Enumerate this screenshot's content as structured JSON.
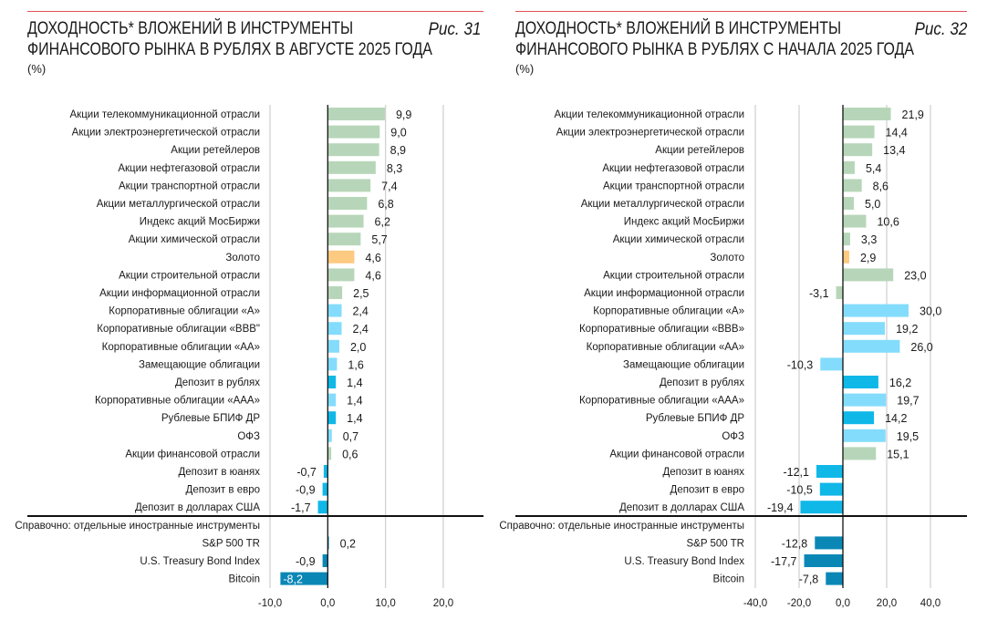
{
  "colors": {
    "g": "#b7d6b9",
    "o": "#fcca80",
    "lb": "#84dcfc",
    "mb": "#10b8e8",
    "db": "#0b87b6"
  },
  "chart_data": [
    {
      "type": "bar",
      "orientation": "horizontal",
      "figure_label": "Рис. 31",
      "title_line1": "ДОХОДНОСТЬ* ВЛОЖЕНИЙ В ИНСТРУМЕНТЫ",
      "title_line2": "ФИНАНСОВОГО РЫНКА В РУБЛЯХ В АВГУСТЕ 2025 ГОДА",
      "unit": "(%)",
      "xlim": [
        -10,
        20
      ],
      "ticks": [
        "-10,0",
        "0,0",
        "10,0",
        "20,0"
      ],
      "tick_values": [
        -10,
        0,
        10,
        20
      ],
      "grid": true,
      "note": "Справочно: отдельные иностранные инструменты",
      "categories": [
        {
          "label": "Акции телекоммуникационной отрасли",
          "value": 9.9,
          "text": "9,9",
          "color": "g"
        },
        {
          "label": "Акции электроэнергетической отрасли",
          "value": 9.0,
          "text": "9,0",
          "color": "g"
        },
        {
          "label": "Акции ретейлеров",
          "value": 8.9,
          "text": "8,9",
          "color": "g"
        },
        {
          "label": "Акции нефтегазовой отрасли",
          "value": 8.3,
          "text": "8,3",
          "color": "g"
        },
        {
          "label": "Акции транспортной отрасли",
          "value": 7.4,
          "text": "7,4",
          "color": "g"
        },
        {
          "label": "Акции металлургической отрасли",
          "value": 6.8,
          "text": "6,8",
          "color": "g"
        },
        {
          "label": "Индекс акций МосБиржи",
          "value": 6.2,
          "text": "6,2",
          "color": "g"
        },
        {
          "label": "Акции химической отрасли",
          "value": 5.7,
          "text": "5,7",
          "color": "g"
        },
        {
          "label": "Золото",
          "value": 4.6,
          "text": "4,6",
          "color": "o"
        },
        {
          "label": "Акции строительной отрасли",
          "value": 4.6,
          "text": "4,6",
          "color": "g"
        },
        {
          "label": "Акции информационной отрасли",
          "value": 2.5,
          "text": "2,5",
          "color": "g"
        },
        {
          "label": "Корпоративные облигации «А»",
          "value": 2.4,
          "text": "2,4",
          "color": "lb"
        },
        {
          "label": "Корпоративные облигации «ВВВ\"",
          "value": 2.4,
          "text": "2,4",
          "color": "lb"
        },
        {
          "label": "Корпоративные облигации «АА»",
          "value": 2.0,
          "text": "2,0",
          "color": "lb"
        },
        {
          "label": "Замещающие облигации",
          "value": 1.6,
          "text": "1,6",
          "color": "lb"
        },
        {
          "label": "Депозит в рублях",
          "value": 1.4,
          "text": "1,4",
          "color": "mb"
        },
        {
          "label": "Корпоративные облигации «ААА»",
          "value": 1.4,
          "text": "1,4",
          "color": "lb"
        },
        {
          "label": "Рублевые БПИФ ДР",
          "value": 1.4,
          "text": "1,4",
          "color": "mb"
        },
        {
          "label": "ОФЗ",
          "value": 0.7,
          "text": "0,7",
          "color": "lb"
        },
        {
          "label": "Акции финансовой отрасли",
          "value": 0.6,
          "text": "0,6",
          "color": "g"
        },
        {
          "label": "Депозит в юанях",
          "value": -0.7,
          "text": "-0,7",
          "color": "mb"
        },
        {
          "label": "Депозит в евро",
          "value": -0.9,
          "text": "-0,9",
          "color": "mb"
        },
        {
          "label": "Депозит в долларах США",
          "value": -1.7,
          "text": "-1,7",
          "color": "mb"
        }
      ],
      "foreign": [
        {
          "label": "S&P 500 TR",
          "value": 0.2,
          "text": "0,2",
          "color": "db"
        },
        {
          "label": "U.S. Treasury Bond Index",
          "value": -0.9,
          "text": "-0,9",
          "color": "db"
        },
        {
          "label": "Bitcoin",
          "value": -8.2,
          "text": "-8,2",
          "color": "db"
        }
      ]
    },
    {
      "type": "bar",
      "orientation": "horizontal",
      "figure_label": "Рис. 32",
      "title_line1": "ДОХОДНОСТЬ* ВЛОЖЕНИЙ В ИНСТРУМЕНТЫ",
      "title_line2": "ФИНАНСОВОГО РЫНКА В РУБЛЯХ С НАЧАЛА 2025 ГОДА",
      "unit": "(%)",
      "xlim": [
        -40,
        40
      ],
      "ticks": [
        "-40,0",
        "-20,0",
        "0,0",
        "20,0",
        "40,0"
      ],
      "tick_values": [
        -40,
        -20,
        0,
        20,
        40
      ],
      "grid": true,
      "note": "Справочно: отдельные иностранные инструменты",
      "categories": [
        {
          "label": "Акции телекоммуникационной отрасли",
          "value": 21.9,
          "text": "21,9",
          "color": "g"
        },
        {
          "label": "Акции электроэнергетической отрасли",
          "value": 14.4,
          "text": "14,4",
          "color": "g"
        },
        {
          "label": "Акции ретейлеров",
          "value": 13.4,
          "text": "13,4",
          "color": "g"
        },
        {
          "label": "Акции нефтегазовой отрасли",
          "value": 5.4,
          "text": "5,4",
          "color": "g"
        },
        {
          "label": "Акции транспортной отрасли",
          "value": 8.6,
          "text": "8,6",
          "color": "g"
        },
        {
          "label": "Акции металлургической отрасли",
          "value": 5.0,
          "text": "5,0",
          "color": "g"
        },
        {
          "label": "Индекс акций МосБиржи",
          "value": 10.6,
          "text": "10,6",
          "color": "g"
        },
        {
          "label": "Акции химической отрасли",
          "value": 3.3,
          "text": "3,3",
          "color": "g"
        },
        {
          "label": "Золото",
          "value": 2.9,
          "text": "2,9",
          "color": "o"
        },
        {
          "label": "Акции строительной отрасли",
          "value": 23.0,
          "text": "23,0",
          "color": "g"
        },
        {
          "label": "Акции информационной отрасли",
          "value": -3.1,
          "text": "-3,1",
          "color": "g"
        },
        {
          "label": "Корпоративные облигации «А»",
          "value": 30.0,
          "text": "30,0",
          "color": "lb"
        },
        {
          "label": "Корпоративные облигации «ВВВ»",
          "value": 19.2,
          "text": "19,2",
          "color": "lb"
        },
        {
          "label": "Корпоративные облигации «АА»",
          "value": 26.0,
          "text": "26,0",
          "color": "lb"
        },
        {
          "label": "Замещающие облигации",
          "value": -10.3,
          "text": "-10,3",
          "color": "lb"
        },
        {
          "label": "Депозит в рублях",
          "value": 16.2,
          "text": "16,2",
          "color": "mb"
        },
        {
          "label": "Корпоративные облигации «ААА»",
          "value": 19.7,
          "text": "19,7",
          "color": "lb"
        },
        {
          "label": "Рублевые БПИФ ДР",
          "value": 14.2,
          "text": "14,2",
          "color": "mb"
        },
        {
          "label": "ОФЗ",
          "value": 19.5,
          "text": "19,5",
          "color": "lb"
        },
        {
          "label": "Акции финансовой отрасли",
          "value": 15.1,
          "text": "15,1",
          "color": "g"
        },
        {
          "label": "Депозит в юанях",
          "value": -12.1,
          "text": "-12,1",
          "color": "mb"
        },
        {
          "label": "Депозит в евро",
          "value": -10.5,
          "text": "-10,5",
          "color": "mb"
        },
        {
          "label": "Депозит в долларах США",
          "value": -19.4,
          "text": "-19,4",
          "color": "mb"
        }
      ],
      "foreign": [
        {
          "label": "S&P 500 TR",
          "value": -12.8,
          "text": "-12,8",
          "color": "db"
        },
        {
          "label": "U.S. Treasury Bond Index",
          "value": -17.7,
          "text": "-17,7",
          "color": "db"
        },
        {
          "label": "Bitcoin",
          "value": -7.8,
          "text": "-7,8",
          "color": "db"
        }
      ]
    }
  ]
}
